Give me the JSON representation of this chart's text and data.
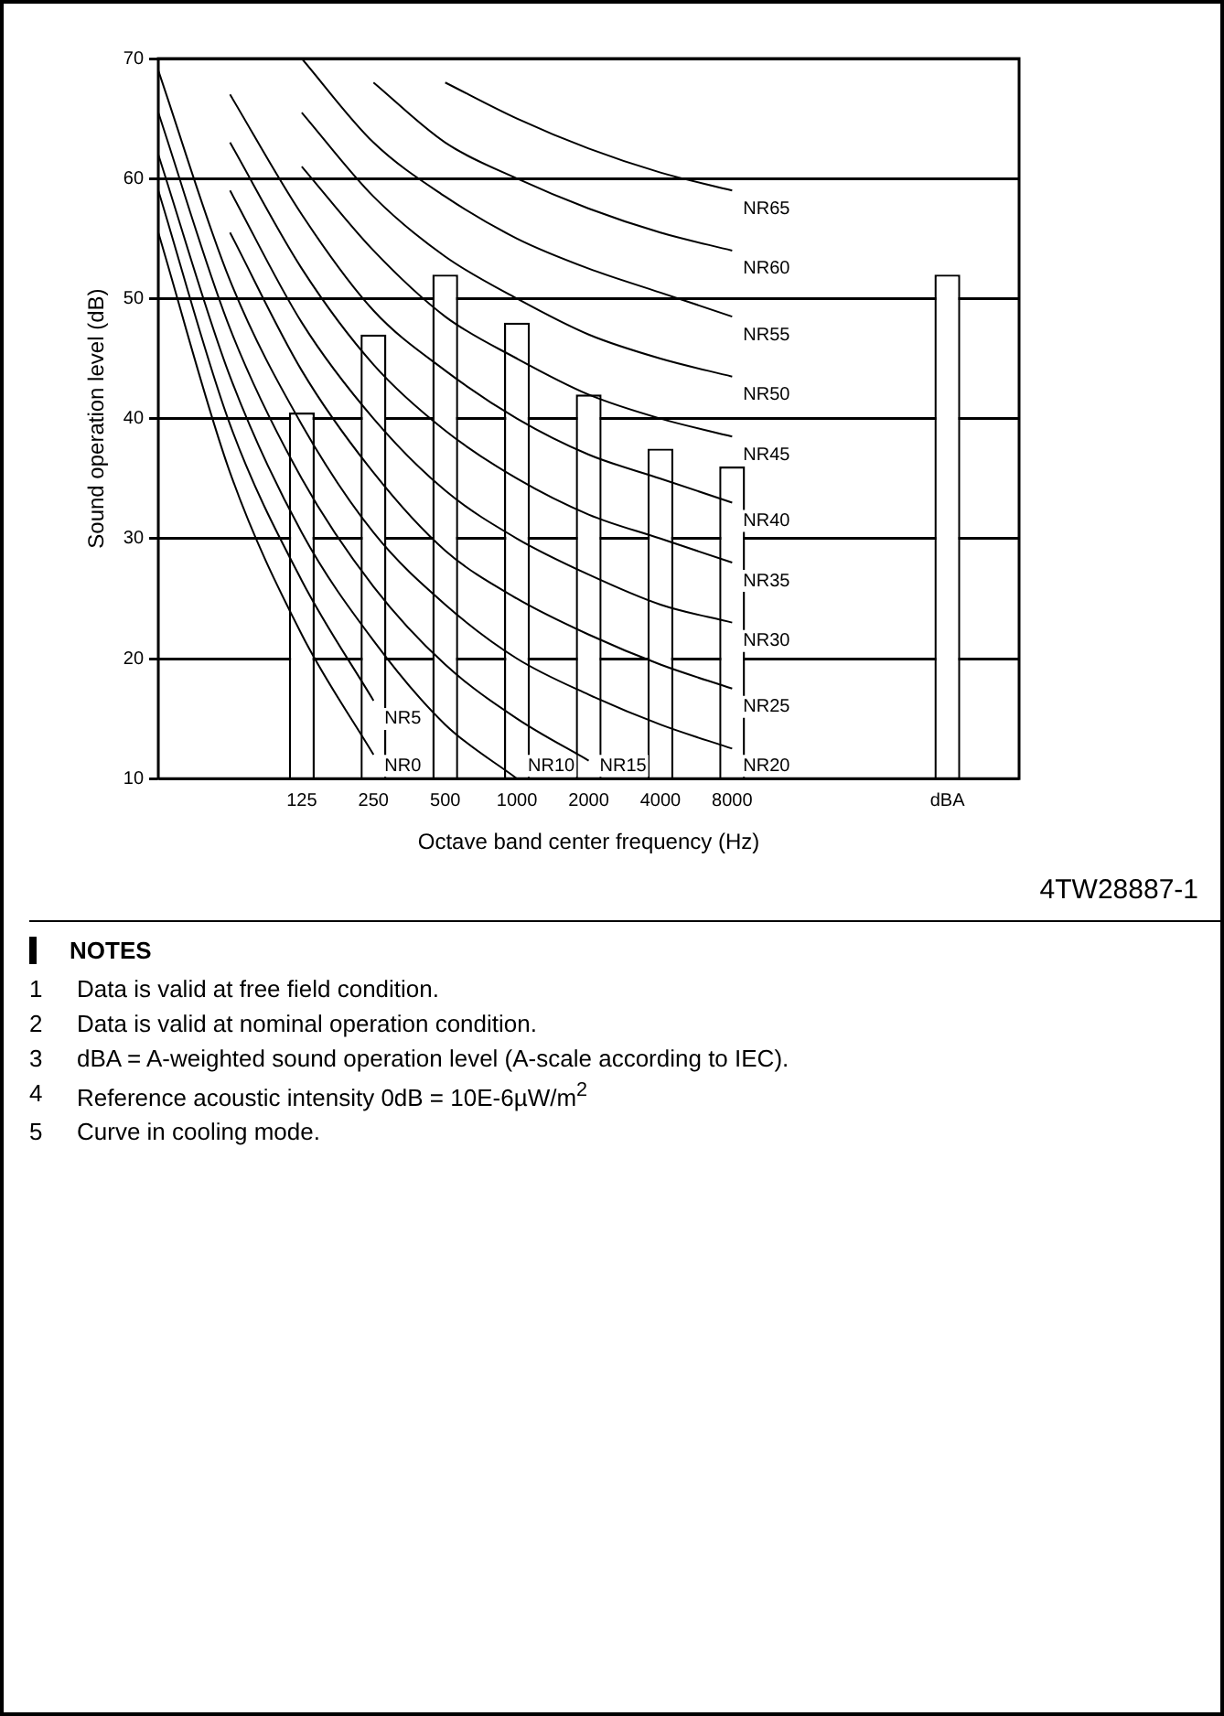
{
  "chart_data": {
    "type": "bar",
    "xlabel": "Octave band center frequency (Hz)",
    "ylabel": "Sound operation level (dB)",
    "categories": [
      null,
      null,
      "125",
      "250",
      "500",
      "1000",
      "2000",
      "4000",
      "8000",
      null,
      null,
      "dBA",
      null
    ],
    "ylim": [
      10,
      70
    ],
    "yticks": [
      10,
      20,
      30,
      40,
      50,
      60,
      70
    ],
    "grid": "y",
    "legend": false,
    "marker": "none",
    "series": [
      {
        "color": "#ffffff",
        "values": [
          null,
          null,
          40.5,
          47,
          52,
          48,
          42,
          37.5,
          36,
          null,
          null,
          52,
          null
        ]
      },
      {
        "type": "line",
        "name": "NR0",
        "color": "#000000",
        "values": [
          55.5,
          35.5,
          22,
          12,
          null,
          null,
          null,
          null,
          null,
          null,
          null,
          null,
          null
        ]
      },
      {
        "type": "line",
        "name": "NR5",
        "color": "#000000",
        "values": [
          59,
          39.5,
          26.5,
          16.5,
          null,
          null,
          null,
          null,
          null,
          null,
          null,
          null,
          null
        ]
      },
      {
        "type": "line",
        "name": "NR10",
        "color": "#000000",
        "values": [
          62,
          43.5,
          30.5,
          21.5,
          14.5,
          10,
          null,
          null,
          null,
          null,
          null,
          null,
          null
        ]
      },
      {
        "type": "line",
        "name": "NR15",
        "color": "#000000",
        "values": [
          65.5,
          47.5,
          35,
          26,
          19.5,
          15,
          11.5,
          null,
          null,
          null,
          null,
          null,
          null
        ]
      },
      {
        "type": "line",
        "name": "NR20",
        "color": "#000000",
        "values": [
          69,
          51.5,
          39.5,
          30.5,
          24.5,
          20,
          17,
          14.5,
          12.5,
          null,
          null,
          null,
          null
        ]
      },
      {
        "type": "line",
        "name": "NR25",
        "color": "#000000",
        "values": [
          null,
          55.5,
          44,
          35.5,
          29,
          25,
          22,
          19.5,
          17.5,
          null,
          null,
          null,
          null
        ]
      },
      {
        "type": "line",
        "name": "NR30",
        "color": "#000000",
        "values": [
          null,
          59,
          48,
          40,
          34,
          30,
          27,
          24.5,
          23,
          null,
          null,
          null,
          null
        ]
      },
      {
        "type": "line",
        "name": "NR35",
        "color": "#000000",
        "values": [
          null,
          63,
          52.5,
          44.5,
          39,
          35,
          32,
          30,
          28,
          null,
          null,
          null,
          null
        ]
      },
      {
        "type": "line",
        "name": "NR40",
        "color": "#000000",
        "values": [
          null,
          67,
          57,
          49,
          44,
          40,
          37,
          35,
          33,
          null,
          null,
          null,
          null
        ]
      },
      {
        "type": "line",
        "name": "NR45",
        "color": "#000000",
        "values": [
          null,
          null,
          61,
          54,
          48.5,
          45,
          42,
          40,
          38.5,
          null,
          null,
          null,
          null
        ]
      },
      {
        "type": "line",
        "name": "NR50",
        "color": "#000000",
        "values": [
          null,
          null,
          65.5,
          58.5,
          53.5,
          50,
          47,
          45,
          43.5,
          null,
          null,
          null,
          null
        ]
      },
      {
        "type": "line",
        "name": "NR55",
        "color": "#000000",
        "values": [
          null,
          null,
          70,
          63,
          58.5,
          55,
          52.5,
          50.5,
          48.5,
          null,
          null,
          null,
          null
        ]
      },
      {
        "type": "line",
        "name": "NR60",
        "color": "#000000",
        "values": [
          null,
          null,
          null,
          68,
          63,
          60,
          57.5,
          55.5,
          54,
          null,
          null,
          null,
          null
        ]
      },
      {
        "type": "line",
        "name": "NR65",
        "color": "#000000",
        "values": [
          null,
          null,
          null,
          null,
          68,
          65,
          62.5,
          60.5,
          59,
          null,
          null,
          null,
          null
        ]
      }
    ],
    "annotations": [
      "4TW28887-1",
      "NOTES",
      "1\tData is valid at free field condition.",
      "2\tData is valid at nominal operation condition.",
      "3\tdBA = A-weighted sound operation level (A-scale according to IEC).",
      "4\tReference acoustic intensity 0dB = 10E-6µW/m$^{2}$",
      "5\tCurve in cooling mode."
    ]
  }
}
